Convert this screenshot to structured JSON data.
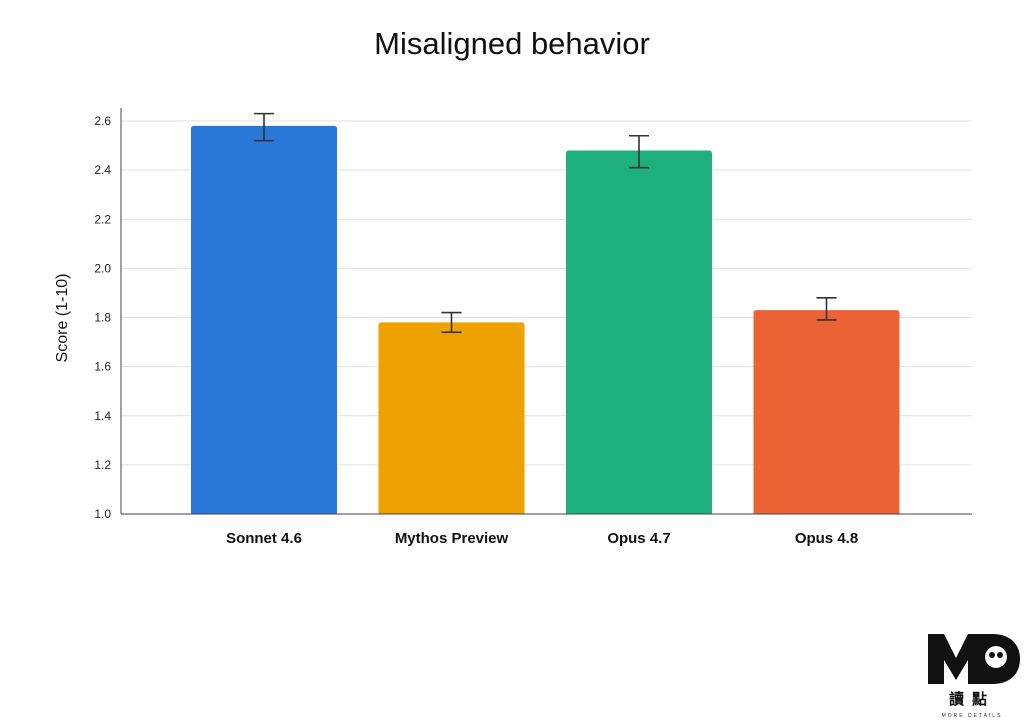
{
  "chart_data": {
    "type": "bar",
    "title": "Misaligned behavior",
    "xlabel": "",
    "ylabel": "Score (1-10)",
    "ylim": [
      1.0,
      2.6
    ],
    "yticks": [
      "1.0",
      "1.2",
      "1.4",
      "1.6",
      "1.8",
      "2.0",
      "2.2",
      "2.4",
      "2.6"
    ],
    "grid": true,
    "categories": [
      "Sonnet 4.6",
      "Mythos Preview",
      "Opus 4.7",
      "Opus 4.8"
    ],
    "values": [
      2.58,
      1.78,
      2.48,
      1.83
    ],
    "error_low": [
      2.52,
      1.74,
      2.41,
      1.79
    ],
    "error_high": [
      2.63,
      1.82,
      2.54,
      1.88
    ],
    "colors": [
      "#2878D8",
      "#EEA200",
      "#1EB07C",
      "#EB6235"
    ]
  },
  "logo": {
    "letters": "MD",
    "chinese": "讀點",
    "tagline": "MORE DETAILS"
  }
}
